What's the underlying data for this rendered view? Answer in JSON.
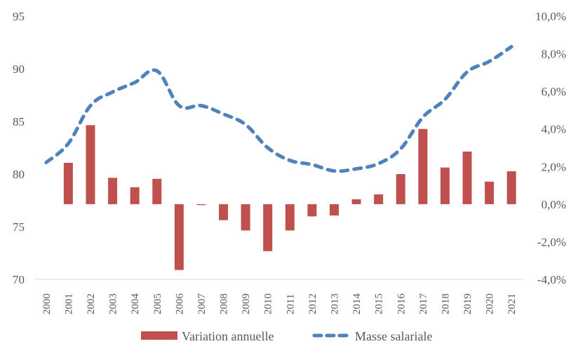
{
  "chart_data": {
    "type": "bar+line",
    "title": "",
    "categories": [
      "2000",
      "2001",
      "2002",
      "2003",
      "2004",
      "2005",
      "2006",
      "2007",
      "2008",
      "2009",
      "2010",
      "2011",
      "2012",
      "2013",
      "2014",
      "2015",
      "2016",
      "2017",
      "2018",
      "2019",
      "2020",
      "2021"
    ],
    "series": [
      {
        "name": "Variation annuelle",
        "type": "bar",
        "axis": "right",
        "color": "#C0504D",
        "unit": "percent",
        "values": [
          null,
          2.2,
          4.2,
          1.4,
          0.9,
          1.35,
          -3.5,
          -0.05,
          -0.85,
          -1.4,
          -2.5,
          -1.4,
          -0.65,
          -0.6,
          0.26,
          0.52,
          1.6,
          4.0,
          1.95,
          2.8,
          1.2,
          1.75
        ]
      },
      {
        "name": "Masse salariale",
        "type": "line",
        "style": "dashed",
        "axis": "left",
        "color": "#4F81BD",
        "values": [
          81.1,
          82.9,
          86.5,
          87.8,
          88.7,
          89.8,
          86.5,
          86.5,
          85.7,
          84.7,
          82.5,
          81.3,
          80.9,
          80.3,
          80.5,
          81.0,
          82.4,
          85.4,
          87.1,
          89.7,
          90.7,
          92.1
        ]
      }
    ],
    "left_axis": {
      "ylim": [
        70,
        95
      ],
      "ticks": [
        70,
        75,
        80,
        85,
        90,
        95
      ],
      "tick_labels": [
        "70",
        "75",
        "80",
        "85",
        "90",
        "95"
      ]
    },
    "right_axis": {
      "ylim": [
        -4,
        10
      ],
      "ticks": [
        -4,
        -2,
        0,
        2,
        4,
        6,
        8,
        10
      ],
      "tick_labels": [
        "-4,0%",
        "-2,0%",
        "0,0%",
        "2,0%",
        "4,0%",
        "6,0%",
        "8,0%",
        "10,0%"
      ]
    },
    "xlabel": "",
    "ylabel": "",
    "grid": false,
    "legend": {
      "position": "bottom",
      "entries": [
        "Variation annuelle",
        "Masse salariale"
      ]
    }
  }
}
